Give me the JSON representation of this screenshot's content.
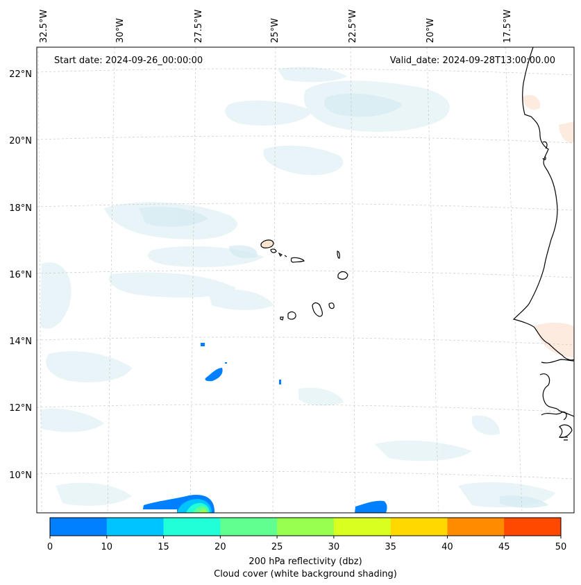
{
  "map": {
    "start_label": "Start date: 2024-09-26_00:00:00",
    "valid_label": "Valid_date: 2024-09-28T13:00:00.00",
    "lon_ticks": [
      "32.5°W",
      "30°W",
      "27.5°W",
      "25°W",
      "22.5°W",
      "20°W",
      "17.5°W"
    ],
    "lat_ticks": [
      "22°N",
      "20°N",
      "18°N",
      "16°N",
      "14°N",
      "12°N",
      "10°N"
    ],
    "features": [
      "cabo-verde-islands",
      "west-africa-coastline",
      "reflectivity-cells",
      "cloud-cover-shading"
    ]
  },
  "colorbar": {
    "ticks": [
      "0",
      "10",
      "15",
      "20",
      "25",
      "30",
      "35",
      "40",
      "45",
      "50"
    ],
    "colors": [
      "#0080ff",
      "#00c4ff",
      "#20ffd8",
      "#60ff90",
      "#98ff50",
      "#d8ff20",
      "#ffd800",
      "#ff8c00",
      "#ff4800"
    ],
    "title": "200 hPa reflectivity (dbz)",
    "subtitle": "Cloud cover (white background shading)"
  }
}
